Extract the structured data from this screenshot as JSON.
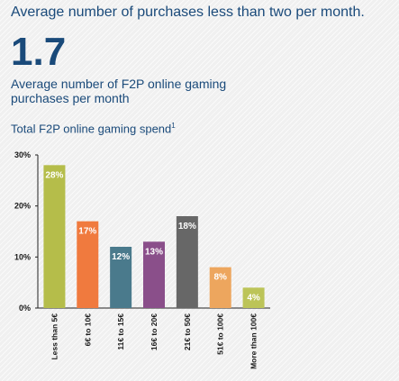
{
  "headline": "Average number of purchases less than two per month.",
  "stat": {
    "value": "1.7",
    "description": "Average number of F2P online gaming purchases per month"
  },
  "chart_title": "Total F2P online gaming spend",
  "chart_title_footnote": "1",
  "chart_data": {
    "type": "bar",
    "title": "Total F2P online gaming spend",
    "categories": [
      "Less than 5€",
      "6€ to 10€",
      "11€ to 15€",
      "16€ to 20€",
      "21€ to 50€",
      "51€ to 100€",
      "More than 100€"
    ],
    "values": [
      28,
      17,
      12,
      13,
      18,
      8,
      4
    ],
    "value_labels": [
      "28%",
      "17%",
      "12%",
      "13%",
      "18%",
      "8%",
      "4%"
    ],
    "colors": [
      "#b5bd4a",
      "#f07a3e",
      "#4a7a8c",
      "#8a4f8a",
      "#676767",
      "#eda65e",
      "#bcc458"
    ],
    "yticks": [
      0,
      10,
      20,
      30
    ],
    "ytick_labels": [
      "0%",
      "10%",
      "20%",
      "30%"
    ],
    "ylim": [
      0,
      30
    ],
    "xlabel": "",
    "ylabel": "",
    "grid": false,
    "legend": "none"
  }
}
